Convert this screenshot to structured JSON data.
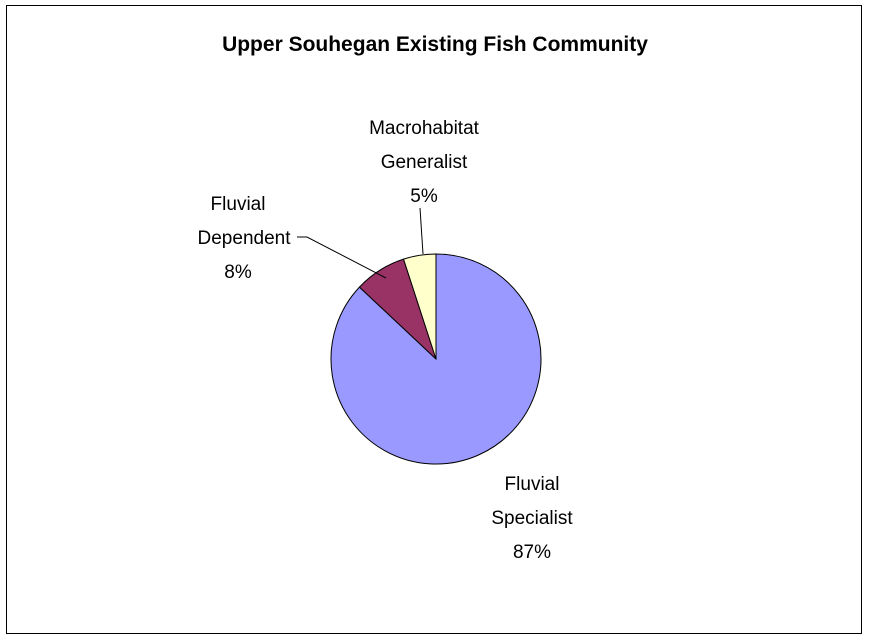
{
  "chart_data": {
    "type": "pie",
    "title": "Upper Souhegan Existing Fish Community",
    "slices": [
      {
        "name": "Fluvial Specialist",
        "value": 87,
        "percent_label": "87%",
        "color": "#9999ff"
      },
      {
        "name": "Fluvial Dependent",
        "value": 8,
        "percent_label": "8%",
        "color": "#993366"
      },
      {
        "name": "Macrohabitat Generalist",
        "value": 5,
        "percent_label": "5%",
        "color": "#ffffcc"
      }
    ],
    "start_angle_deg": 0,
    "direction": "clockwise",
    "legend": "none"
  },
  "labels": {
    "macro": {
      "line1": "Macrohabitat",
      "line2": "Generalist",
      "pct": "5%"
    },
    "dependent": {
      "line1": "Fluvial",
      "line2": "Dependent",
      "pct": "8%"
    },
    "specialist": {
      "line1": "Fluvial",
      "line2": "Specialist",
      "pct": "87%"
    }
  }
}
